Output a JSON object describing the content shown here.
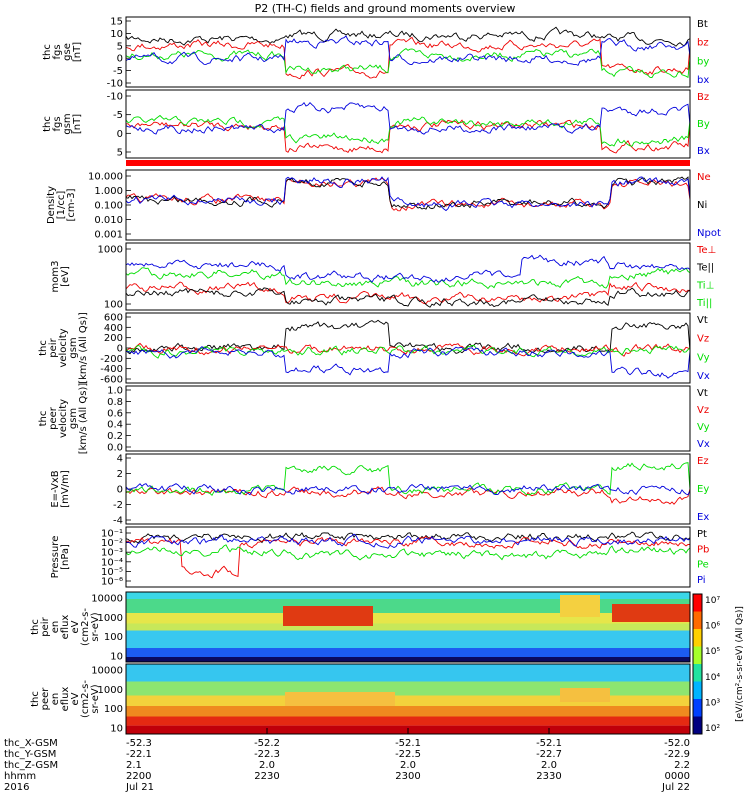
{
  "title": "P2 (TH-C) fields and ground moments overview",
  "colors": {
    "black": "#000000",
    "red": "#ee0000",
    "green": "#00dd00",
    "blue": "#0000dd",
    "divider": "#ff0000"
  },
  "chart_data": [
    {
      "type": "line",
      "id": "fgs_gse",
      "ylabel": [
        "thc",
        "fgs",
        "gse",
        "[nT]"
      ],
      "ylim": [
        -10,
        15
      ],
      "yticks": [
        "-10",
        "-5",
        "0",
        "5",
        "10",
        "15"
      ],
      "series": [
        {
          "name": "Bt",
          "color": "black"
        },
        {
          "name": "bz",
          "color": "red"
        },
        {
          "name": "by",
          "color": "green"
        },
        {
          "name": "bx",
          "color": "blue"
        }
      ]
    },
    {
      "type": "line",
      "id": "fgs_gsm",
      "ylabel": [
        "thc",
        "fgs",
        "gsm",
        "[nT]"
      ],
      "ylim": [
        -15,
        10
      ],
      "yticks": [
        "-10",
        "-5",
        "0",
        "5"
      ],
      "series": [
        {
          "name": "Bz",
          "color": "red"
        },
        {
          "name": "By",
          "color": "green"
        },
        {
          "name": "Bx",
          "color": "blue"
        }
      ]
    },
    {
      "type": "line",
      "id": "density",
      "ylabel": [
        "Density",
        "[1/cc]",
        "[cm-3]"
      ],
      "scale": "log",
      "ylim": [
        0.001,
        10
      ],
      "yticks": [
        "10.000",
        "1.000",
        "0.100",
        "0.010",
        "0.001"
      ],
      "series": [
        {
          "name": "Ne",
          "color": "red"
        },
        {
          "name": "Ni",
          "color": "black"
        },
        {
          "name": "Npot",
          "color": "blue"
        }
      ]
    },
    {
      "type": "line",
      "id": "temperature",
      "ylabel": [
        "mom3",
        "[eV]"
      ],
      "scale": "log",
      "ylim": [
        50,
        3000
      ],
      "yticks": [
        "1000",
        "100"
      ],
      "series": [
        {
          "name": "Te⊥",
          "color": "red"
        },
        {
          "name": "Te||",
          "color": "black"
        },
        {
          "name": "Ti⊥",
          "color": "green"
        },
        {
          "name": "Ti||",
          "color": "green"
        }
      ]
    },
    {
      "type": "line",
      "id": "pvel",
      "ylabel": [
        "thc",
        "peir",
        "velocity",
        "gsm",
        "[km/s (All Qs)]"
      ],
      "ylim": [
        -600,
        600
      ],
      "yticks": [
        "-600",
        "-400",
        "-200",
        "0",
        "200",
        "400",
        "600"
      ],
      "series": [
        {
          "name": "Vt",
          "color": "black"
        },
        {
          "name": "Vz",
          "color": "red"
        },
        {
          "name": "Vy",
          "color": "green"
        },
        {
          "name": "Vx",
          "color": "blue"
        }
      ]
    },
    {
      "type": "line",
      "id": "evel",
      "ylabel": [
        "thc",
        "peer",
        "velocity",
        "gsm",
        "[km/s (All Qs)]"
      ],
      "ylim": [
        0,
        1
      ],
      "yticks": [
        "0.0",
        "0.2",
        "0.4",
        "0.6",
        "0.8",
        "1.0"
      ],
      "series": [
        {
          "name": "Vt",
          "color": "black"
        },
        {
          "name": "Vz",
          "color": "red"
        },
        {
          "name": "Vy",
          "color": "green"
        },
        {
          "name": "Vx",
          "color": "blue"
        }
      ]
    },
    {
      "type": "line",
      "id": "efield",
      "ylabel": [
        "E=-VxB",
        "[mV/m]"
      ],
      "ylim": [
        -4,
        4
      ],
      "yticks": [
        "-4",
        "-2",
        "0",
        "2",
        "4"
      ],
      "series": [
        {
          "name": "Ez",
          "color": "red"
        },
        {
          "name": "Ey",
          "color": "green"
        },
        {
          "name": "Ex",
          "color": "blue"
        }
      ]
    },
    {
      "type": "line",
      "id": "pressure",
      "ylabel": [
        "Pressure",
        "[nPa]"
      ],
      "scale": "log",
      "ylim": [
        1e-06,
        0.1
      ],
      "yticks": [
        "10⁻¹",
        "10⁻²",
        "10⁻³",
        "10⁻⁴",
        "10⁻⁵",
        "10⁻⁶"
      ],
      "series": [
        {
          "name": "Pt",
          "color": "black"
        },
        {
          "name": "Pb",
          "color": "red"
        },
        {
          "name": "Pe",
          "color": "green"
        },
        {
          "name": "Pi",
          "color": "blue"
        }
      ]
    },
    {
      "type": "heatmap",
      "id": "peir",
      "ylabel": [
        "thc",
        "peir",
        "en",
        "eflux",
        "eV",
        "(cm2-s-",
        "sr-eV)"
      ],
      "scale": "log",
      "yticks": [
        "10000",
        "1000",
        "100",
        "10"
      ]
    },
    {
      "type": "heatmap",
      "id": "peer",
      "ylabel": [
        "thc",
        "peer",
        "en",
        "eflux",
        "eV",
        "(cm2-s-",
        "sr-eV)"
      ],
      "scale": "log",
      "yticks": [
        "10000",
        "1000",
        "100",
        "10"
      ]
    }
  ],
  "colorbar": {
    "ticks": [
      "10⁷",
      "10⁶",
      "10⁵",
      "10⁴",
      "10³",
      "10²"
    ],
    "label": "[eV/(cm²-s-sr-eV) (All Qs)]"
  },
  "xaxis": {
    "rows": [
      {
        "label": "thc_X-GSM",
        "values": [
          "-52.3",
          "-52.2",
          "-52.1",
          "-52.1",
          "-52.0"
        ]
      },
      {
        "label": "thc_Y-GSM",
        "values": [
          "-22.1",
          "-22.3",
          "-22.5",
          "-22.7",
          "-22.9"
        ]
      },
      {
        "label": "thc_Z-GSM",
        "values": [
          "2.1",
          "2.0",
          "2.0",
          "2.0",
          "2.2"
        ]
      },
      {
        "label": "hhmm",
        "values": [
          "2200",
          "2230",
          "2300",
          "2330",
          "0000"
        ]
      },
      {
        "label": "2016",
        "values": [
          "Jul 21",
          "",
          "",
          "",
          "Jul 22"
        ]
      }
    ]
  }
}
